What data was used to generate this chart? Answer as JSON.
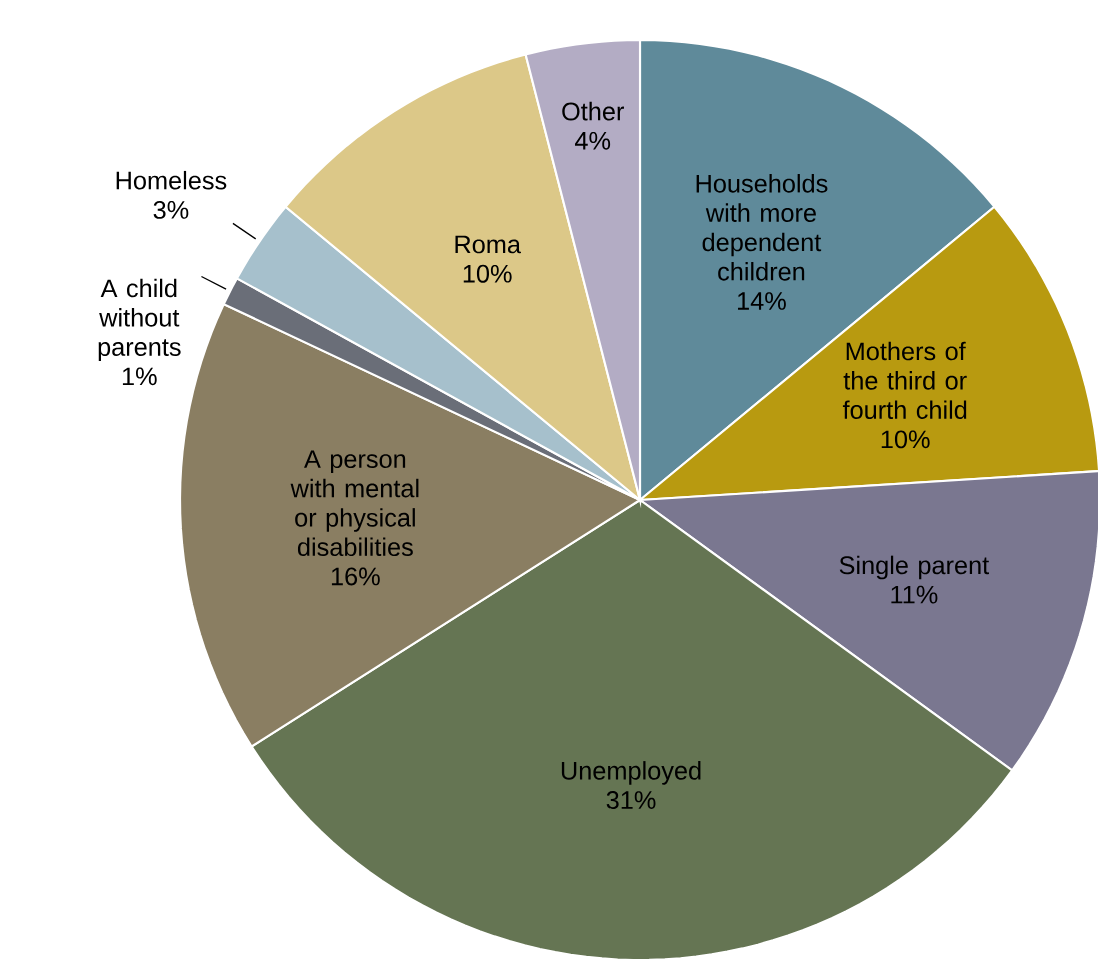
{
  "chart_data": {
    "type": "pie",
    "categories": [
      "Households with more dependent children",
      "Mothers of the third or fourth child",
      "Single parent",
      "Unemployed",
      "A person with mental or physical disabilities",
      "A child without parents",
      "Homeless",
      "Roma",
      "Other"
    ],
    "values": [
      14,
      10,
      11,
      31,
      16,
      1,
      3,
      10,
      4
    ],
    "value_labels": [
      "14%",
      "10%",
      "11%",
      "31%",
      "16%",
      "1%",
      "3%",
      "10%",
      "4%"
    ],
    "colors": [
      "#5f8a9a",
      "#b89a10",
      "#7a7790",
      "#657553",
      "#8a7e62",
      "#6a6e78",
      "#a6c0cc",
      "#dcc888",
      "#b3acc4"
    ]
  }
}
